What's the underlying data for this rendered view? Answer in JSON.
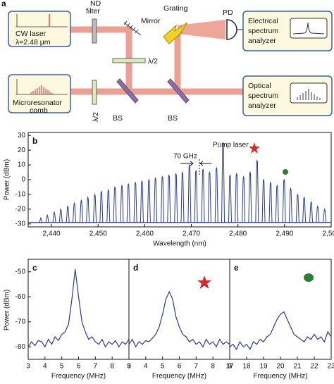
{
  "diagram": {
    "panel_label": "a",
    "nd_filter": [
      "ND",
      "filter"
    ],
    "mirror": "Mirror",
    "grating": "Grating",
    "pd": "PD",
    "cw_laser": [
      "CW laser",
      "λ=2.48 μm"
    ],
    "half_wave_1": "λ/2",
    "half_wave_2": "λ/2",
    "comb": [
      "Microresonator",
      "comb"
    ],
    "bs_1": "BS",
    "bs_2": "BS",
    "electrical": [
      "Electrical",
      "spectrum",
      "analyzer"
    ],
    "optical": [
      "Optical",
      "spectrum",
      "analyzer"
    ]
  },
  "chart_data": [
    {
      "type": "stem",
      "panel_label": "b",
      "annotations": [
        "Pump laser",
        "70 GHz"
      ],
      "x_label": "Wavelength (nm)",
      "y_label": "Power (dBm)",
      "color": "#2b3b8c",
      "xlim": [
        2435,
        2500
      ],
      "ylim": [
        -32,
        32
      ],
      "xticks": [
        {
          "value": 2440,
          "label": "2,440"
        },
        {
          "value": 2450,
          "label": "2,450"
        },
        {
          "value": 2460,
          "label": "2,460"
        },
        {
          "value": 2470,
          "label": "2,470"
        },
        {
          "value": 2480,
          "label": "2,480"
        },
        {
          "value": 2490,
          "label": "2,490"
        },
        {
          "value": 2500,
          "label": "2,500"
        }
      ],
      "yticks": [
        -30,
        -20,
        -10,
        0,
        10,
        20,
        30
      ],
      "floor": -29,
      "x": [
        2437.7,
        2439.1,
        2440.6,
        2442.0,
        2443.5,
        2444.9,
        2446.4,
        2447.8,
        2449.3,
        2450.7,
        2452.2,
        2453.6,
        2455.1,
        2456.5,
        2458.0,
        2459.4,
        2460.9,
        2462.3,
        2463.8,
        2465.2,
        2466.7,
        2468.1,
        2469.6,
        2471.0,
        2472.5,
        2473.9,
        2475.4,
        2476.8,
        2478.3,
        2479.7,
        2481.2,
        2482.6,
        2484.1,
        2485.5,
        2487.0,
        2488.4,
        2489.9,
        2491.3,
        2492.8,
        2494.2,
        2495.7,
        2497.1,
        2498.6
      ],
      "values": [
        -26,
        -24,
        -22,
        -20,
        -18,
        -16,
        -14,
        -12,
        -10,
        -8,
        -7,
        -5,
        -4,
        -3,
        -2,
        -1,
        0,
        1,
        2,
        3,
        4,
        5,
        10,
        6,
        7,
        5,
        8,
        25,
        3,
        4,
        2,
        5,
        13,
        0,
        -2,
        -4,
        0,
        -6,
        -10,
        -12,
        -15,
        -18,
        -20
      ]
    },
    {
      "type": "line",
      "panel_label": "c",
      "x_label": "Frequency (MHz)",
      "y_label": "Power (dBm)",
      "color": "#2b3b8c",
      "xlim": [
        3,
        9
      ],
      "ylim": [
        -85,
        -45
      ],
      "xticks": [
        3,
        4,
        5,
        6,
        7,
        8,
        9
      ],
      "yticks": [
        -80,
        -70,
        -60,
        -50
      ],
      "x": [
        3.0,
        3.2,
        3.4,
        3.6,
        3.8,
        4.0,
        4.2,
        4.4,
        4.6,
        4.8,
        5.0,
        5.2,
        5.4,
        5.6,
        5.8,
        6.0,
        6.2,
        6.4,
        6.6,
        6.8,
        7.0,
        7.2,
        7.4,
        7.6,
        7.8,
        8.0,
        8.2,
        8.4,
        8.6,
        8.8,
        9.0
      ],
      "values": [
        -80,
        -78,
        -79.5,
        -77.5,
        -78,
        -80,
        -77,
        -79,
        -76,
        -77.5,
        -75,
        -74,
        -71,
        -61,
        -49,
        -60,
        -70,
        -74,
        -77,
        -76,
        -78,
        -79,
        -77,
        -80,
        -78,
        -79,
        -77.5,
        -80,
        -78,
        -79,
        -77
      ]
    },
    {
      "type": "line",
      "panel_label": "d",
      "x_label": "Frequency (MHz)",
      "color": "#2b3b8c",
      "xlim": [
        3,
        9
      ],
      "ylim": [
        -85,
        -45
      ],
      "xticks": [
        3,
        4,
        5,
        6,
        7,
        8,
        9
      ],
      "x": [
        3.0,
        3.2,
        3.4,
        3.6,
        3.8,
        4.0,
        4.2,
        4.4,
        4.6,
        4.8,
        5.0,
        5.2,
        5.4,
        5.6,
        5.8,
        6.0,
        6.2,
        6.4,
        6.6,
        6.8,
        7.0,
        7.2,
        7.4,
        7.6,
        7.8,
        8.0,
        8.2,
        8.4,
        8.6,
        8.8,
        9.0
      ],
      "values": [
        -79,
        -77,
        -80,
        -78,
        -79,
        -77.5,
        -78,
        -76.5,
        -75,
        -72,
        -67,
        -61,
        -58,
        -61,
        -68,
        -72,
        -75,
        -76,
        -78,
        -77,
        -79,
        -78,
        -80,
        -77,
        -79,
        -78,
        -80,
        -77,
        -79,
        -78,
        -79
      ]
    },
    {
      "type": "line",
      "panel_label": "e",
      "x_label": "Frequency (MHz)",
      "color": "#2b3b8c",
      "xlim": [
        17,
        23
      ],
      "ylim": [
        -85,
        -45
      ],
      "xticks": [
        17,
        18,
        19,
        20,
        21,
        22,
        23
      ],
      "x": [
        17.0,
        17.2,
        17.4,
        17.6,
        17.8,
        18.0,
        18.2,
        18.4,
        18.6,
        18.8,
        19.0,
        19.2,
        19.4,
        19.6,
        19.8,
        20.0,
        20.2,
        20.4,
        20.6,
        20.8,
        21.0,
        21.2,
        21.4,
        21.6,
        21.8,
        22.0,
        22.2,
        22.4,
        22.6,
        22.8,
        23.0
      ],
      "values": [
        -80,
        -79,
        -81,
        -78,
        -80,
        -79,
        -81,
        -78,
        -79,
        -77,
        -78,
        -76,
        -75,
        -72,
        -69,
        -67,
        -66,
        -69,
        -72,
        -75,
        -76,
        -77,
        -78,
        -76,
        -77,
        -75,
        -77,
        -76,
        -78,
        -74,
        -76
      ]
    }
  ]
}
